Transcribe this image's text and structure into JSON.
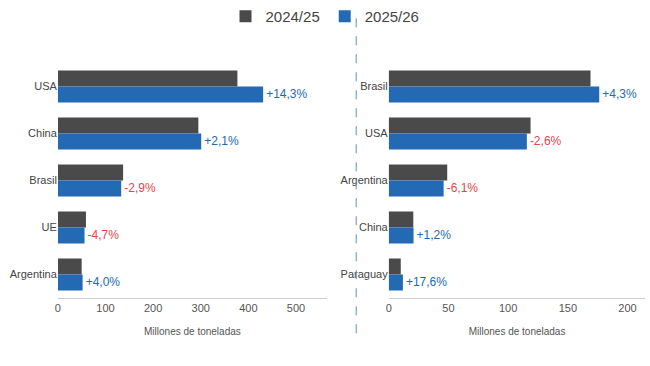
{
  "chart_data": [
    {
      "type": "bar",
      "orientation": "horizontal",
      "categories": [
        "USA",
        "China",
        "Brasil",
        "UE",
        "Argentina"
      ],
      "series": [
        {
          "name": "2024/25",
          "color": "#4a4a4a",
          "values": [
            377,
            295,
            137,
            59,
            50
          ]
        },
        {
          "name": "2025/26",
          "color": "#2469b3",
          "values": [
            431,
            301,
            133,
            56,
            52
          ],
          "change": [
            14.3,
            2.1,
            -2.9,
            -4.7,
            4.0
          ],
          "change_labels": [
            "+14,3%",
            "+2,1%",
            "-2,9%",
            "-4,7%",
            "+4,0%"
          ]
        }
      ],
      "xlabel": "Millones de toneladas",
      "xlim": [
        0,
        565
      ],
      "xticks": [
        0,
        100,
        200,
        300,
        400,
        500
      ],
      "grid": false,
      "legend": "top"
    },
    {
      "type": "bar",
      "orientation": "horizontal",
      "categories": [
        "Brasil",
        "USA",
        "Argentina",
        "China",
        "Paraguay"
      ],
      "series": [
        {
          "name": "2024/25",
          "color": "#4a4a4a",
          "values": [
            169,
            118.8,
            49,
            20.6,
            10.1
          ]
        },
        {
          "name": "2025/26",
          "color": "#2469b3",
          "values": [
            176.3,
            115.7,
            46,
            20.8,
            11.9
          ],
          "change": [
            4.3,
            -2.6,
            -6.1,
            1.2,
            17.6
          ],
          "change_labels": [
            "+4,3%",
            "-2,6%",
            "-6,1%",
            "+1,2%",
            "+17,6%"
          ]
        }
      ],
      "xlabel": "Millones de toneladas",
      "xlim": [
        0,
        215
      ],
      "xticks": [
        0,
        50,
        100,
        150,
        200
      ],
      "grid": false
    }
  ]
}
